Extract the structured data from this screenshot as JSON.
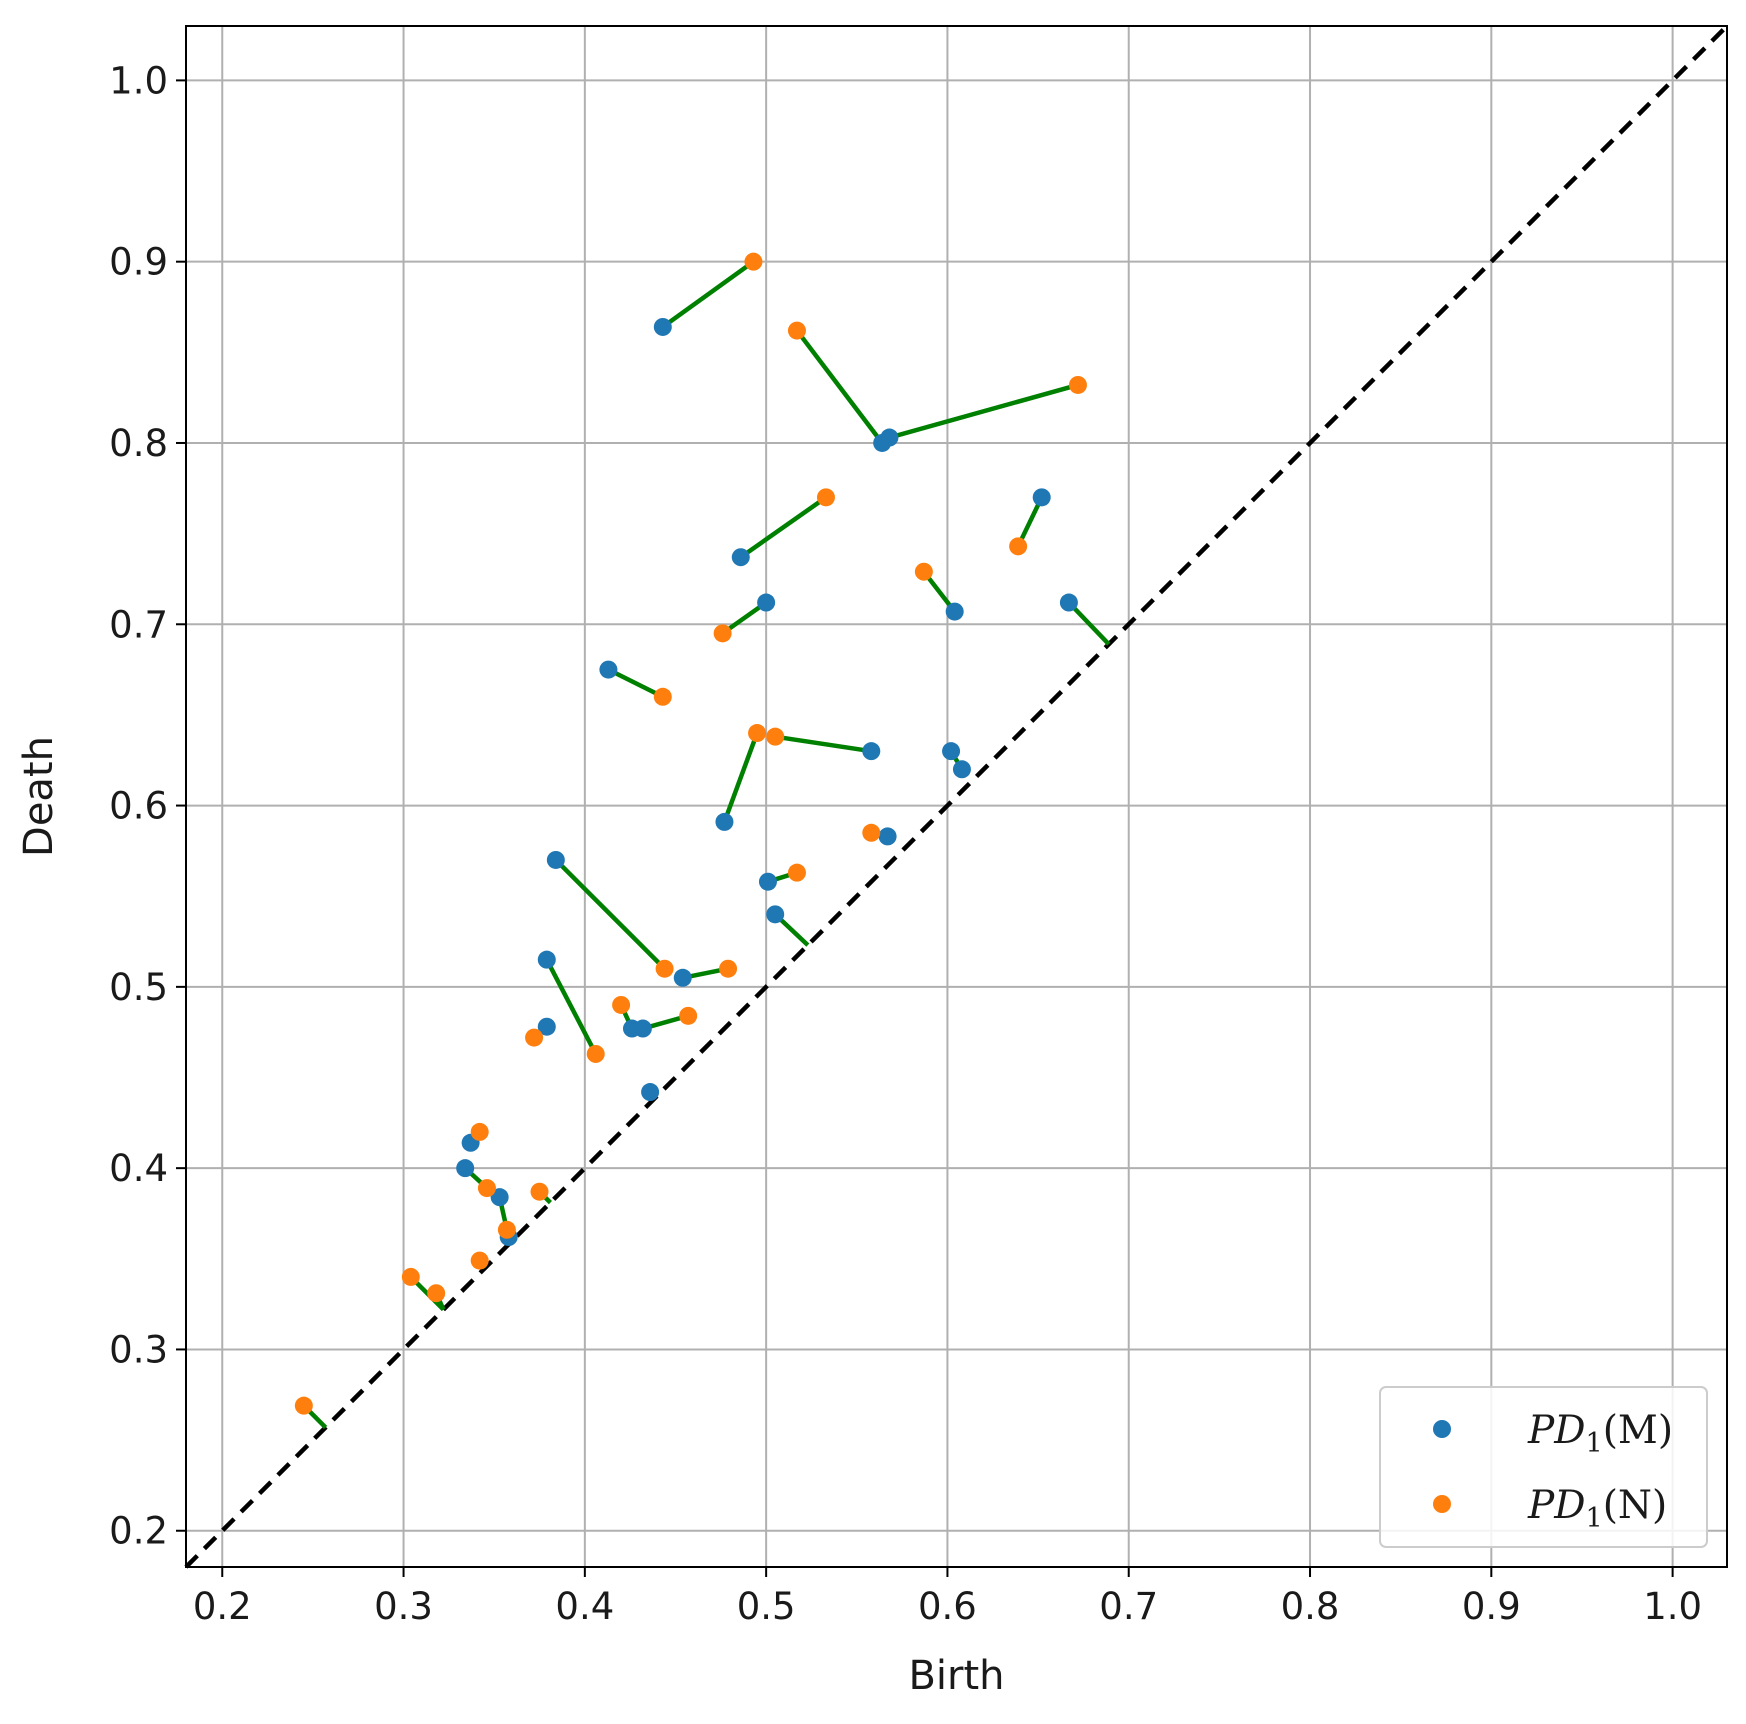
{
  "chart_data": {
    "type": "scatter",
    "xlabel": "Birth",
    "ylabel": "Death",
    "xlim": [
      0.18,
      1.03
    ],
    "ylim": [
      0.18,
      1.03
    ],
    "xticks": [
      "0.2",
      "0.3",
      "0.4",
      "0.5",
      "0.6",
      "0.7",
      "0.8",
      "0.9",
      "1.0"
    ],
    "yticks": [
      "0.2",
      "0.3",
      "0.4",
      "0.5",
      "0.6",
      "0.7",
      "0.8",
      "0.9",
      "1.0"
    ],
    "grid": true,
    "legend_position": "bottom-right",
    "diagonal": {
      "from": [
        0.18,
        0.18
      ],
      "to": [
        1.03,
        1.03
      ],
      "color": "#000000",
      "style": "dashed"
    },
    "series": [
      {
        "name": "PD1(M)",
        "legend_base": "PD",
        "legend_sub": "1",
        "legend_symbol": "M",
        "color": "#1f77b4",
        "points": [
          [
            0.443,
            0.864
          ],
          [
            0.564,
            0.8
          ],
          [
            0.568,
            0.803
          ],
          [
            0.652,
            0.77
          ],
          [
            0.486,
            0.737
          ],
          [
            0.5,
            0.712
          ],
          [
            0.604,
            0.707
          ],
          [
            0.667,
            0.712
          ],
          [
            0.413,
            0.675
          ],
          [
            0.558,
            0.63
          ],
          [
            0.602,
            0.63
          ],
          [
            0.608,
            0.62
          ],
          [
            0.477,
            0.591
          ],
          [
            0.567,
            0.583
          ],
          [
            0.384,
            0.57
          ],
          [
            0.501,
            0.558
          ],
          [
            0.505,
            0.54
          ],
          [
            0.379,
            0.515
          ],
          [
            0.454,
            0.505
          ],
          [
            0.379,
            0.478
          ],
          [
            0.426,
            0.477
          ],
          [
            0.432,
            0.477
          ],
          [
            0.436,
            0.442
          ],
          [
            0.337,
            0.414
          ],
          [
            0.334,
            0.4
          ],
          [
            0.353,
            0.384
          ],
          [
            0.358,
            0.362
          ]
        ]
      },
      {
        "name": "PD1(N)",
        "legend_base": "PD",
        "legend_sub": "1",
        "legend_symbol": "N",
        "color": "#ff7f0e",
        "points": [
          [
            0.493,
            0.9
          ],
          [
            0.517,
            0.862
          ],
          [
            0.672,
            0.832
          ],
          [
            0.533,
            0.77
          ],
          [
            0.639,
            0.743
          ],
          [
            0.587,
            0.729
          ],
          [
            0.476,
            0.695
          ],
          [
            0.443,
            0.66
          ],
          [
            0.495,
            0.64
          ],
          [
            0.505,
            0.638
          ],
          [
            0.558,
            0.585
          ],
          [
            0.517,
            0.563
          ],
          [
            0.444,
            0.51
          ],
          [
            0.479,
            0.51
          ],
          [
            0.42,
            0.49
          ],
          [
            0.457,
            0.484
          ],
          [
            0.372,
            0.472
          ],
          [
            0.406,
            0.463
          ],
          [
            0.342,
            0.42
          ],
          [
            0.346,
            0.389
          ],
          [
            0.375,
            0.387
          ],
          [
            0.357,
            0.366
          ],
          [
            0.342,
            0.349
          ],
          [
            0.304,
            0.34
          ],
          [
            0.318,
            0.331
          ],
          [
            0.245,
            0.269
          ]
        ]
      }
    ],
    "matching": {
      "color": "#008000",
      "segments": [
        [
          0.443,
          0.864,
          0.493,
          0.9
        ],
        [
          0.517,
          0.862,
          0.564,
          0.8
        ],
        [
          0.568,
          0.803,
          0.672,
          0.832
        ],
        [
          0.486,
          0.737,
          0.533,
          0.77
        ],
        [
          0.652,
          0.77,
          0.639,
          0.743
        ],
        [
          0.587,
          0.729,
          0.604,
          0.707
        ],
        [
          0.5,
          0.712,
          0.476,
          0.695
        ],
        [
          0.667,
          0.712,
          0.689,
          0.689
        ],
        [
          0.413,
          0.675,
          0.443,
          0.66
        ],
        [
          0.505,
          0.638,
          0.558,
          0.63
        ],
        [
          0.477,
          0.591,
          0.495,
          0.64
        ],
        [
          0.602,
          0.63,
          0.608,
          0.62
        ],
        [
          0.558,
          0.585,
          0.567,
          0.583
        ],
        [
          0.384,
          0.57,
          0.444,
          0.51
        ],
        [
          0.501,
          0.558,
          0.517,
          0.563
        ],
        [
          0.505,
          0.54,
          0.523,
          0.523
        ],
        [
          0.454,
          0.505,
          0.479,
          0.51
        ],
        [
          0.379,
          0.515,
          0.406,
          0.463
        ],
        [
          0.42,
          0.49,
          0.426,
          0.477
        ],
        [
          0.432,
          0.477,
          0.457,
          0.484
        ],
        [
          0.379,
          0.478,
          0.372,
          0.472
        ],
        [
          0.337,
          0.414,
          0.342,
          0.42
        ],
        [
          0.334,
          0.4,
          0.346,
          0.389
        ],
        [
          0.353,
          0.384,
          0.357,
          0.366
        ],
        [
          0.358,
          0.362,
          0.357,
          0.366
        ],
        [
          0.375,
          0.387,
          0.381,
          0.381
        ],
        [
          0.342,
          0.349,
          0.345,
          0.345
        ],
        [
          0.304,
          0.34,
          0.322,
          0.322
        ],
        [
          0.318,
          0.331,
          0.322,
          0.322
        ],
        [
          0.245,
          0.269,
          0.257,
          0.257
        ]
      ]
    }
  }
}
